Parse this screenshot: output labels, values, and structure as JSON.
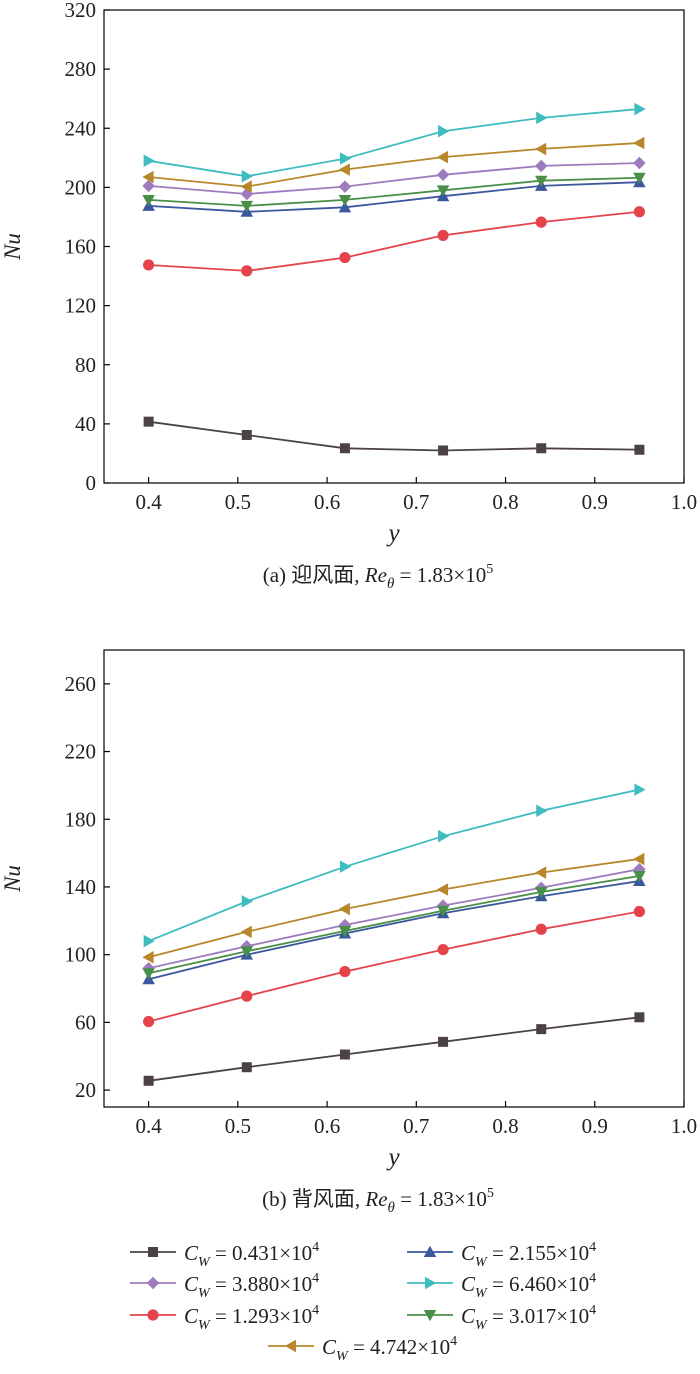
{
  "chart_data": [
    {
      "type": "line",
      "caption": {
        "prefix": "(a) 迎风面, ",
        "re_symbol": "Re",
        "re_subscript": "θ",
        "equals": " = ",
        "mantissa": "1.83×10",
        "exponent": "5"
      },
      "xlabel": "y",
      "ylabel": "Nu",
      "xlim": [
        0.35,
        1.0
      ],
      "ylim": [
        0,
        320
      ],
      "xticks": [
        0.4,
        0.5,
        0.6,
        0.7,
        0.8,
        0.9,
        1.0
      ],
      "xtick_labels": [
        "0.4",
        "0.5",
        "0.6",
        "0.7",
        "0.8",
        "0.9",
        "1.0"
      ],
      "yticks": [
        0,
        40,
        80,
        120,
        160,
        200,
        240,
        280,
        320
      ],
      "ytick_labels": [
        "0",
        "40",
        "80",
        "120",
        "160",
        "200",
        "240",
        "280",
        "320"
      ],
      "x": [
        0.4,
        0.51,
        0.62,
        0.73,
        0.84,
        0.95
      ],
      "series": [
        {
          "key": "s1",
          "values": [
            41.5,
            32.5,
            23.5,
            22.0,
            23.5,
            22.5
          ]
        },
        {
          "key": "s2",
          "values": [
            187.5,
            183.5,
            186.5,
            194.0,
            201.0,
            203.5
          ]
        },
        {
          "key": "s3",
          "values": [
            201.0,
            195.5,
            200.5,
            208.5,
            214.5,
            216.5
          ]
        },
        {
          "key": "s4",
          "values": [
            218.0,
            207.5,
            219.5,
            238.0,
            247.0,
            253.0
          ]
        },
        {
          "key": "s5",
          "values": [
            147.5,
            143.5,
            152.5,
            167.5,
            176.5,
            183.5
          ]
        },
        {
          "key": "s6",
          "values": [
            191.5,
            187.5,
            191.5,
            198.0,
            204.5,
            206.5
          ]
        },
        {
          "key": "s7",
          "values": [
            207.0,
            200.5,
            212.0,
            220.5,
            226.0,
            230.0
          ]
        }
      ]
    },
    {
      "type": "line",
      "caption": {
        "prefix": "(b) 背风面, ",
        "re_symbol": "Re",
        "re_subscript": "θ",
        "equals": " = ",
        "mantissa": "1.83×10",
        "exponent": "5"
      },
      "xlabel": "y",
      "ylabel": "Nu",
      "xlim": [
        0.35,
        1.0
      ],
      "ylim": [
        10,
        280
      ],
      "xticks": [
        0.4,
        0.5,
        0.6,
        0.7,
        0.8,
        0.9,
        1.0
      ],
      "xtick_labels": [
        "0.4",
        "0.5",
        "0.6",
        "0.7",
        "0.8",
        "0.9",
        "1.0"
      ],
      "yticks": [
        20,
        60,
        100,
        140,
        180,
        220,
        260
      ],
      "ytick_labels": [
        "20",
        "60",
        "100",
        "140",
        "180",
        "220",
        "260"
      ],
      "x": [
        0.4,
        0.51,
        0.62,
        0.73,
        0.84,
        0.95
      ],
      "series": [
        {
          "key": "s1",
          "values": [
            25.5,
            33.5,
            41.0,
            48.5,
            56.0,
            63.0
          ]
        },
        {
          "key": "s2",
          "values": [
            85.5,
            100.0,
            112.5,
            124.5,
            134.5,
            143.5
          ]
        },
        {
          "key": "s3",
          "values": [
            92.0,
            105.0,
            117.5,
            129.0,
            139.5,
            150.5
          ]
        },
        {
          "key": "s4",
          "values": [
            108.0,
            131.5,
            152.0,
            170.0,
            185.0,
            197.5
          ]
        },
        {
          "key": "s5",
          "values": [
            60.5,
            75.5,
            90.0,
            103.0,
            115.0,
            125.5
          ]
        },
        {
          "key": "s6",
          "values": [
            89.0,
            102.0,
            114.0,
            126.0,
            137.0,
            146.5
          ]
        },
        {
          "key": "s7",
          "values": [
            98.5,
            113.5,
            127.0,
            138.5,
            148.5,
            156.5
          ]
        }
      ]
    }
  ],
  "legend": {
    "position": "bottom",
    "entries": [
      {
        "key": "s1",
        "symbol": "C",
        "subscript": "W",
        "equals": " = ",
        "mantissa": "0.431×10",
        "exponent": "4"
      },
      {
        "key": "s2",
        "symbol": "C",
        "subscript": "W",
        "equals": " = ",
        "mantissa": "2.155×10",
        "exponent": "4"
      },
      {
        "key": "s3",
        "symbol": "C",
        "subscript": "W",
        "equals": " = ",
        "mantissa": "3.880×10",
        "exponent": "4"
      },
      {
        "key": "s4",
        "symbol": "C",
        "subscript": "W",
        "equals": " = ",
        "mantissa": "6.460×10",
        "exponent": "4"
      },
      {
        "key": "s5",
        "symbol": "C",
        "subscript": "W",
        "equals": " = ",
        "mantissa": "1.293×10",
        "exponent": "4"
      },
      {
        "key": "s6",
        "symbol": "C",
        "subscript": "W",
        "equals": " = ",
        "mantissa": "3.017×10",
        "exponent": "4"
      },
      {
        "key": "s7",
        "symbol": "C",
        "subscript": "W",
        "equals": " = ",
        "mantissa": "4.742×10",
        "exponent": "4"
      }
    ]
  },
  "series_style": {
    "s1": {
      "color": "#4d4243",
      "marker": "square"
    },
    "s2": {
      "color": "#3b579e",
      "marker": "triangle-up"
    },
    "s3": {
      "color": "#9e7bbf",
      "marker": "diamond"
    },
    "s4": {
      "color": "#3fbcc0",
      "marker": "triangle-right"
    },
    "s5": {
      "color": "#e5434b",
      "marker": "circle"
    },
    "s6": {
      "color": "#4a8f47",
      "marker": "triangle-down"
    },
    "s7": {
      "color": "#b8872b",
      "marker": "triangle-left"
    }
  },
  "axis_color": "#000000",
  "grid": false
}
